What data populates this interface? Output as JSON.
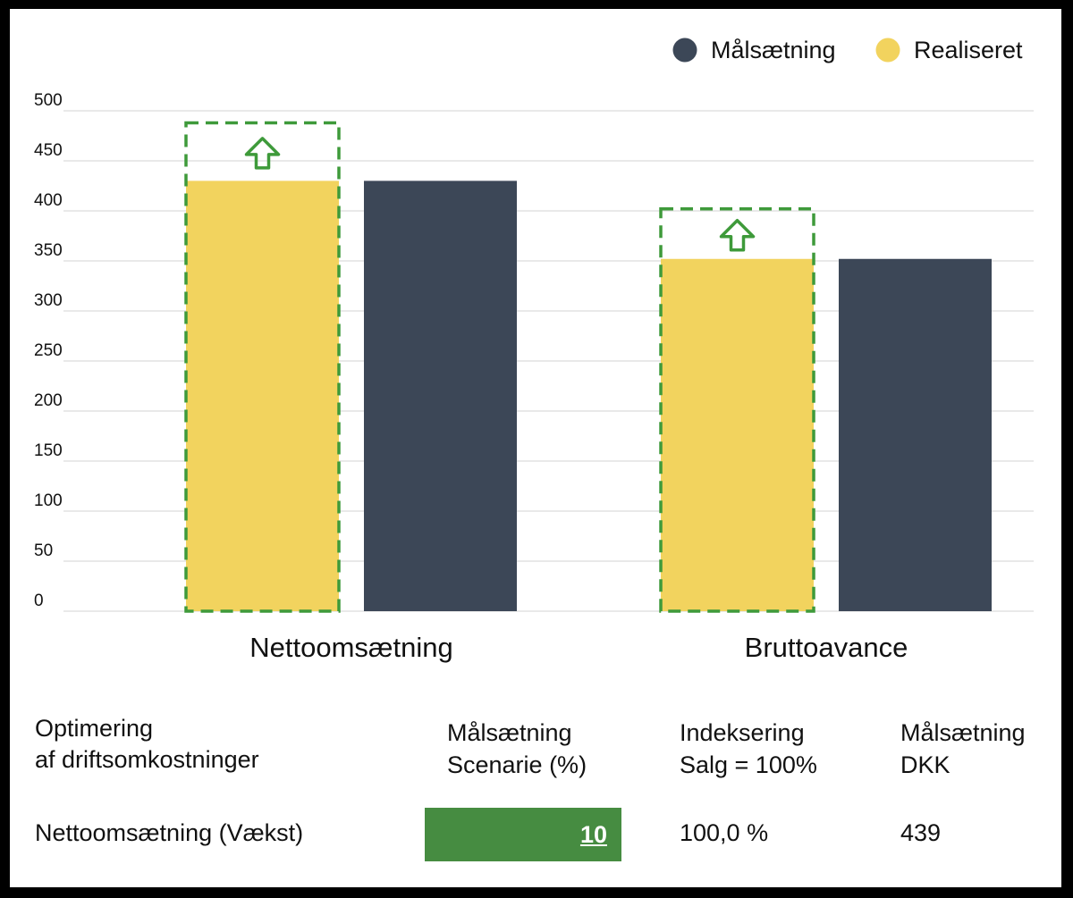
{
  "chart_data": {
    "type": "bar",
    "categories": [
      "Nettoomsætning",
      "Bruttoavance"
    ],
    "series": [
      {
        "name": "Realiseret",
        "color": "#f2d35e",
        "values": [
          430,
          352
        ]
      },
      {
        "name": "Målsætning",
        "color": "#3c4757",
        "values": [
          430,
          352
        ]
      }
    ],
    "targets": [
      488,
      402
    ],
    "target_color": "#3e9a3a",
    "yticks": [
      "0",
      "50",
      "100",
      "150",
      "200",
      "250",
      "300",
      "350",
      "400",
      "450",
      "500"
    ],
    "ylim": [
      0,
      500
    ],
    "grid": true,
    "legend": [
      {
        "label": "Målsætning",
        "color": "#3c4757"
      },
      {
        "label": "Realiseret",
        "color": "#f2d35e"
      }
    ],
    "legend_position": "top-right"
  },
  "table": {
    "header": {
      "col1_line1": "Optimering",
      "col1_line2": "af driftsomkostninger",
      "col2_line1": "Målsætning",
      "col2_line2": "Scenarie (%)",
      "col3_line1": "Indeksering",
      "col3_line2": "Salg = 100%",
      "col4_line1": "Målsætning",
      "col4_line2": "DKK"
    },
    "row": {
      "label": "Nettoomsætning (Vækst)",
      "scenario_value": "10",
      "index_value": "100,0 %",
      "dkk_value": "439"
    }
  }
}
